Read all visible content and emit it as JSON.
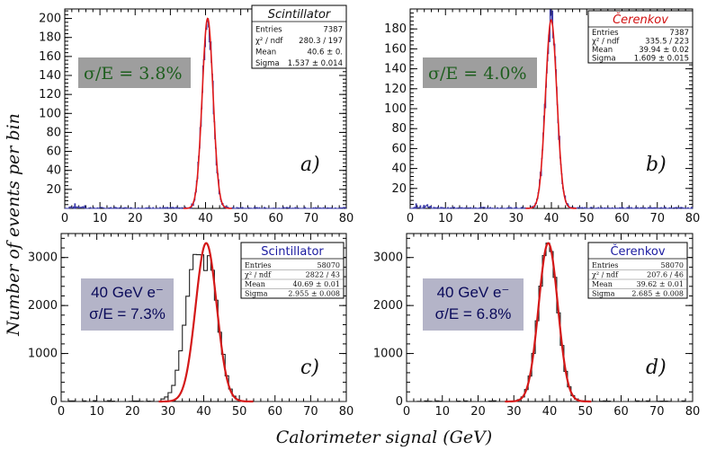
{
  "figure": {
    "ylabel": "Number of events per bin",
    "xlabel": "Calorimeter signal (GeV)"
  },
  "chart_data": [
    {
      "type": "histogram",
      "panel_label": "a)",
      "xlim": [
        0,
        80
      ],
      "ylim": [
        0,
        210
      ],
      "xticks": [
        0,
        10,
        20,
        30,
        40,
        50,
        60,
        70,
        80
      ],
      "yticks": [
        20,
        40,
        60,
        80,
        100,
        120,
        140,
        160,
        180,
        200
      ],
      "resolution_label": "σ/E = 3.8%",
      "peak": 200,
      "mean": 40.6,
      "sigma": 1.537,
      "stats": {
        "title": "Scintillator",
        "rows": [
          {
            "key": "Entries",
            "val": "7387"
          },
          {
            "key": "χ² / ndf",
            "val": "280.3 / 197"
          },
          {
            "key": "Mean",
            "val": "40.6 ± 0."
          },
          {
            "key": "Sigma",
            "val": "1.537 ± 0.014"
          }
        ]
      },
      "colors": {
        "hist": "#3a3aa8",
        "fit": "#e01818",
        "stat_title": "#111111",
        "res_text": "#1e5e1e",
        "res_bg": "#9e9e9e"
      }
    },
    {
      "type": "histogram",
      "panel_label": "b)",
      "xlim": [
        0,
        80
      ],
      "ylim": [
        0,
        200
      ],
      "xticks": [
        0,
        10,
        20,
        30,
        40,
        50,
        60,
        70,
        80
      ],
      "yticks": [
        20,
        40,
        60,
        80,
        100,
        120,
        140,
        160,
        180
      ],
      "resolution_label": "σ/E = 4.0%",
      "peak": 189,
      "mean": 39.94,
      "sigma": 1.609,
      "stats": {
        "title": "Čerenkov",
        "rows": [
          {
            "key": "Entries",
            "val": "7387"
          },
          {
            "key": "χ² / ndf",
            "val": "335.5 / 223"
          },
          {
            "key": "Mean",
            "val": "39.94 ± 0.02"
          },
          {
            "key": "Sigma",
            "val": "1.609 ± 0.015"
          }
        ]
      },
      "colors": {
        "hist": "#3a3aa8",
        "fit": "#e01818",
        "stat_title": "#d01010",
        "res_text": "#1e5e1e",
        "res_bg": "#9e9e9e"
      }
    },
    {
      "type": "histogram",
      "panel_label": "c)",
      "xlim": [
        0,
        80
      ],
      "ylim": [
        0,
        3500
      ],
      "xticks": [
        0,
        10,
        20,
        30,
        40,
        50,
        60,
        70,
        80
      ],
      "yticks": [
        0,
        1000,
        2000,
        3000
      ],
      "resolution_label": [
        "40 GeV e⁻",
        "σ/E = 7.3%"
      ],
      "peak": 3300,
      "mean": 40.69,
      "sigma": 2.955,
      "stats": {
        "title": "Scintillator",
        "rows": [
          {
            "key": "Entries",
            "val": "58070"
          },
          {
            "key": "χ² / ndf",
            "val": "2822 / 43"
          },
          {
            "key": "Mean",
            "val": "40.69 ± 0.01"
          },
          {
            "key": "Sigma",
            "val": "2.955 ± 0.008"
          }
        ]
      },
      "colors": {
        "hist": "#222222",
        "fit": "#d41818",
        "stat_title": "#1a1aa0",
        "res_text": "#0a0a5a",
        "res_bg": "#b4b4c8"
      }
    },
    {
      "type": "histogram",
      "panel_label": "d)",
      "xlim": [
        0,
        80
      ],
      "ylim": [
        0,
        3500
      ],
      "xticks": [
        0,
        10,
        20,
        30,
        40,
        50,
        60,
        70,
        80
      ],
      "yticks": [
        0,
        1000,
        2000,
        3000
      ],
      "resolution_label": [
        "40 GeV e⁻",
        "σ/E = 6.8%"
      ],
      "peak": 3300,
      "mean": 39.62,
      "sigma": 2.685,
      "stats": {
        "title": "Čerenkov",
        "rows": [
          {
            "key": "Entries",
            "val": "58070"
          },
          {
            "key": "χ² / ndf",
            "val": "207.6 / 46"
          },
          {
            "key": "Mean",
            "val": "39.62 ± 0.01"
          },
          {
            "key": "Sigma",
            "val": "2.685 ± 0.008"
          }
        ]
      },
      "colors": {
        "hist": "#222222",
        "fit": "#d41818",
        "stat_title": "#1a1aa0",
        "res_text": "#0a0a5a",
        "res_bg": "#b4b4c8"
      }
    }
  ]
}
